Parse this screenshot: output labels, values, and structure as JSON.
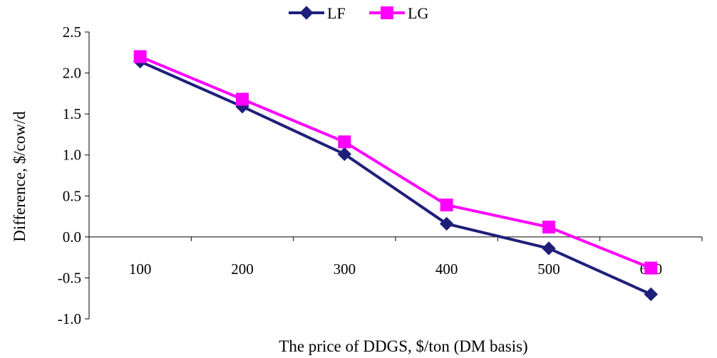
{
  "chart_data": {
    "type": "line",
    "categories": [
      "100",
      "200",
      "300",
      "400",
      "500",
      "600"
    ],
    "series": [
      {
        "name": "LF",
        "values": [
          2.14,
          1.59,
          1.01,
          0.16,
          -0.14,
          -0.7
        ],
        "color": "#1f1f7a",
        "marker": "diamond"
      },
      {
        "name": "LG",
        "values": [
          2.2,
          1.68,
          1.16,
          0.39,
          0.12,
          -0.38
        ],
        "color": "#ff00ff",
        "marker": "square"
      }
    ],
    "xlabel": "The price of DDGS, $/ton (DM basis)",
    "ylabel": "Difference, $/cow/d",
    "ylim": [
      -1.0,
      2.5
    ],
    "yticks": [
      "-1.0",
      "-0.5",
      "0.0",
      "0.5",
      "1.0",
      "1.5",
      "2.0",
      "2.5"
    ],
    "grid": false,
    "legend_position": "top-center"
  }
}
